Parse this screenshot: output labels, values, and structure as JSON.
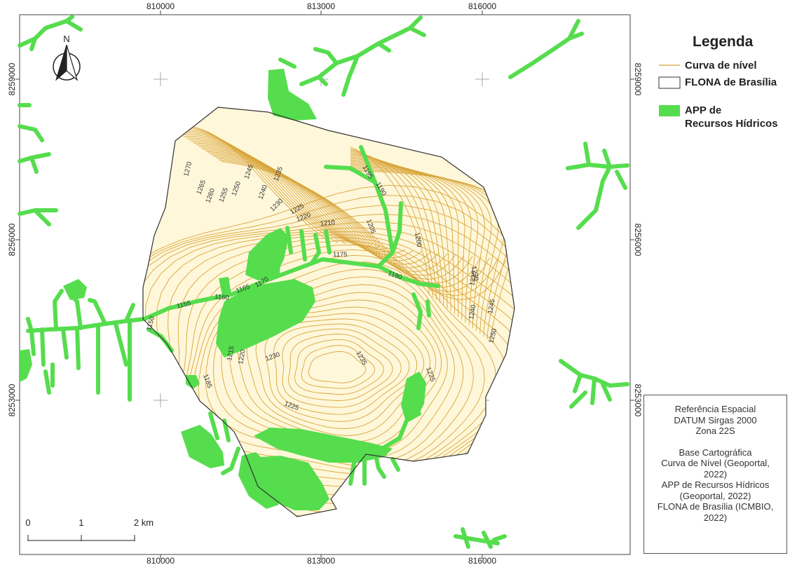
{
  "map": {
    "coords_top": [
      "810000",
      "813000",
      "816000"
    ],
    "coords_bottom": [
      "810000",
      "813000",
      "816000"
    ],
    "coords_left": [
      "8259000",
      "8256000",
      "8253000"
    ],
    "coords_right": [
      "8259000",
      "8256000",
      "8253000"
    ],
    "north_label": "N",
    "contour_labels": [
      "1270",
      "1265",
      "1260",
      "1255",
      "1250",
      "1245",
      "1240",
      "1235",
      "1230",
      "1225",
      "1220",
      "1210",
      "1205",
      "1195",
      "1190",
      "1200",
      "1175",
      "1180",
      "1230",
      "1235",
      "1240",
      "1245",
      "1250",
      "1155",
      "1160",
      "1165",
      "1170",
      "1150",
      "1215",
      "1220",
      "1230",
      "1235",
      "1225",
      "1185",
      "1225"
    ],
    "scale": {
      "labels": [
        "0",
        "1",
        "2 km"
      ]
    },
    "colors": {
      "app": "#55dd4d",
      "contour": "#d8a53a",
      "fill": "#fff6d6",
      "boundary": "#333333"
    }
  },
  "legend": {
    "title": "Legenda",
    "items": [
      {
        "label": "Curva de nível",
        "symbol": "line"
      },
      {
        "label": "FLONA de Brasília",
        "symbol": "outline-box"
      },
      {
        "label": "APP de",
        "symbol": "green-box"
      },
      {
        "label": "Recursos Hídricos",
        "symbol": ""
      }
    ]
  },
  "info": {
    "lines_ref": [
      "Referência Espacial",
      "DATUM Sirgas 2000",
      "Zona 22S"
    ],
    "lines_base": [
      "Base Cartográfica",
      "Curva de Nível (Geoportal,",
      "2022)",
      "APP de Recursos Hídricos",
      "(Geoportal, 2022)",
      "FLONA de Brasília (ICMBIO,",
      "2022)"
    ]
  }
}
